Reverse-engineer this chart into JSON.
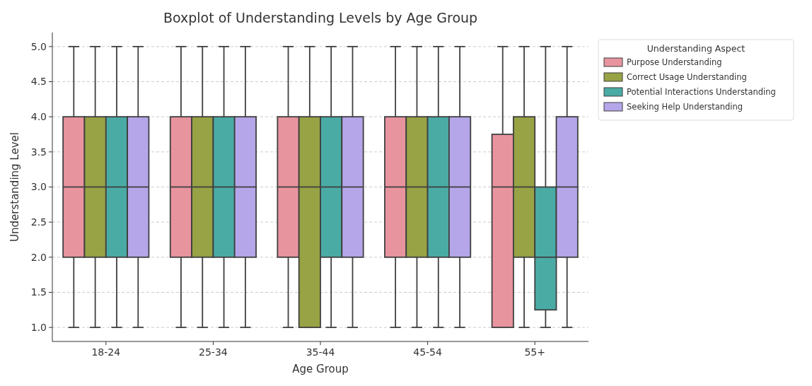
{
  "chart_data": {
    "type": "box",
    "title": "Boxplot of Understanding Levels by Age Group",
    "xlabel": "Age Group",
    "ylabel": "Understanding Level",
    "legend_title": "Understanding Aspect",
    "categories": [
      "18-24",
      "25-34",
      "35-44",
      "45-54",
      "55+"
    ],
    "ylim": [
      0.8,
      5.2
    ],
    "yticks": [
      {
        "value": 1,
        "label": "1.0"
      },
      {
        "value": 1.5,
        "label": "1.5"
      },
      {
        "value": 2,
        "label": "2.0"
      },
      {
        "value": 2.5,
        "label": "2.5"
      },
      {
        "value": 3,
        "label": "3.0"
      },
      {
        "value": 3.5,
        "label": "3.5"
      },
      {
        "value": 4,
        "label": "4.0"
      },
      {
        "value": 4.5,
        "label": "4.5"
      },
      {
        "value": 5,
        "label": "5.0"
      }
    ],
    "grid": "y",
    "legend": "right",
    "series": [
      {
        "name": "Purpose Understanding",
        "color": "#e8949f",
        "boxes": [
          {
            "low": 1,
            "q1": 2,
            "median": 3,
            "q3": 4,
            "high": 5
          },
          {
            "low": 1,
            "q1": 2,
            "median": 3,
            "q3": 4,
            "high": 5
          },
          {
            "low": 1,
            "q1": 2,
            "median": 3,
            "q3": 4,
            "high": 5
          },
          {
            "low": 1,
            "q1": 2,
            "median": 3,
            "q3": 4,
            "high": 5
          },
          {
            "low": 1,
            "q1": 1,
            "median": 3,
            "q3": 3.75,
            "high": 5
          }
        ]
      },
      {
        "name": "Correct Usage Understanding",
        "color": "#97a344",
        "boxes": [
          {
            "low": 1,
            "q1": 2,
            "median": 3,
            "q3": 4,
            "high": 5
          },
          {
            "low": 1,
            "q1": 2,
            "median": 3,
            "q3": 4,
            "high": 5
          },
          {
            "low": 1,
            "q1": 1,
            "median": 3,
            "q3": 4,
            "high": 5
          },
          {
            "low": 1,
            "q1": 2,
            "median": 3,
            "q3": 4,
            "high": 5
          },
          {
            "low": 1,
            "q1": 2,
            "median": 3,
            "q3": 4,
            "high": 5
          }
        ]
      },
      {
        "name": "Potential Interactions Understanding",
        "color": "#4aaba5",
        "boxes": [
          {
            "low": 1,
            "q1": 2,
            "median": 3,
            "q3": 4,
            "high": 5
          },
          {
            "low": 1,
            "q1": 2,
            "median": 3,
            "q3": 4,
            "high": 5
          },
          {
            "low": 1,
            "q1": 2,
            "median": 3,
            "q3": 4,
            "high": 5
          },
          {
            "low": 1,
            "q1": 2,
            "median": 3,
            "q3": 4,
            "high": 5
          },
          {
            "low": 1,
            "q1": 1.25,
            "median": 2,
            "q3": 3,
            "high": 5
          }
        ]
      },
      {
        "name": "Seeking Help Understanding",
        "color": "#b5a6ea",
        "boxes": [
          {
            "low": 1,
            "q1": 2,
            "median": 3,
            "q3": 4,
            "high": 5
          },
          {
            "low": 1,
            "q1": 2,
            "median": 3,
            "q3": 4,
            "high": 5
          },
          {
            "low": 1,
            "q1": 2,
            "median": 3,
            "q3": 4,
            "high": 5
          },
          {
            "low": 1,
            "q1": 2,
            "median": 3,
            "q3": 4,
            "high": 5
          },
          {
            "low": 1,
            "q1": 2,
            "median": 3,
            "q3": 4,
            "high": 5
          }
        ]
      }
    ]
  }
}
